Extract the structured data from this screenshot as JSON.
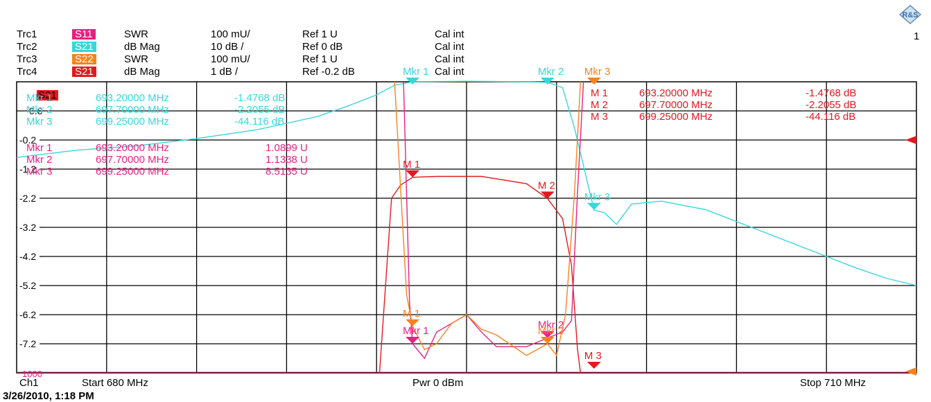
{
  "header": {
    "page_number": "1",
    "logo_icon": "rohde-schwarz-logo-icon",
    "traces": [
      {
        "trc": "Trc1",
        "param": "S11",
        "param_color": "#e8207f",
        "format": "SWR",
        "scale": "100 mU/",
        "ref": "Ref 1 U",
        "cal": "Cal int"
      },
      {
        "trc": "Trc2",
        "param": "S21",
        "param_color": "#39d6dc",
        "format": "dB Mag",
        "scale": "10 dB /",
        "ref": "Ref 0 dB",
        "cal": "Cal int"
      },
      {
        "trc": "Trc3",
        "param": "S22",
        "param_color": "#f58220",
        "format": "SWR",
        "scale": "100 mU/",
        "ref": "Ref 1 U",
        "cal": "Cal int"
      },
      {
        "trc": "Trc4",
        "param": "S21",
        "param_color": "#e3191d",
        "format": "dB Mag",
        "scale": "1 dB /",
        "ref": "Ref -0.2 dB",
        "cal": "Cal int"
      }
    ]
  },
  "marker_tables": {
    "trc2": [
      {
        "label": "Mkr 1",
        "freq": "693.20000 MHz",
        "value": "-1.4768 dB"
      },
      {
        "label": "Mkr 2",
        "freq": "697.70000 MHz",
        "value": "-2.2055 dB"
      },
      {
        "label": "Mkr 3",
        "freq": "699.25000 MHz",
        "value": "-44.116 dB"
      }
    ],
    "trc1": [
      {
        "label": "Mkr 1",
        "freq": "693.20000 MHz",
        "value": "1.0899 U"
      },
      {
        "label": "Mkr 2",
        "freq": "697.70000 MHz",
        "value": "1.1338 U"
      },
      {
        "label": "Mkr 3",
        "freq": "699.25000 MHz",
        "value": "8.5135 U"
      }
    ],
    "trc4": [
      {
        "label": "M 1",
        "freq": "693.20000 MHz",
        "value": "-1.4768 dB"
      },
      {
        "label": "M 2",
        "freq": "697.70000 MHz",
        "value": "-2.2055 dB"
      },
      {
        "label": "M 3",
        "freq": "699.25000 MHz",
        "value": "-44.116 dB"
      }
    ],
    "active_trace_label": "S21"
  },
  "footer": {
    "channel": "Ch1",
    "start": "Start 680 MHz",
    "power": "Pwr 0 dBm",
    "stop": "Stop 710 MHz",
    "timestamp": "3/26/2010, 1:18 PM"
  },
  "colors": {
    "s11": "#e8207f",
    "s21_db": "#39d6dc",
    "s22": "#f58220",
    "s21_fine": "#e3191d",
    "grid": "#000000"
  },
  "chart_data": {
    "type": "line",
    "x_range_mhz": [
      680,
      710
    ],
    "y_axis_ticks": [
      "-0.2",
      "-1.2",
      "-2.2",
      "-3.2",
      "-4.2",
      "-5.2",
      "-6.2",
      "-7.2"
    ],
    "y_axis_extra_labels": [
      "0.8",
      "1000"
    ],
    "ref_value": "-0.2",
    "y_range_trc4": [
      -8.2,
      1.8
    ],
    "grid": true,
    "series": [
      {
        "name": "Trc2 S21 dB Mag",
        "color": "#39d6dc",
        "x": [
          680,
          682,
          684,
          686,
          688,
          690,
          691,
          692,
          692.6,
          693.2,
          695,
          697,
          697.7,
          698.2,
          698.6,
          699.25,
          699.6,
          700,
          700.5,
          701.5,
          703,
          705,
          707,
          708,
          709,
          710
        ],
        "y": [
          -0.8,
          -0.55,
          -0.4,
          -0.15,
          0.15,
          0.6,
          0.95,
          1.35,
          1.68,
          1.8,
          1.82,
          1.8,
          1.78,
          1.6,
          0.2,
          -2.6,
          -2.7,
          -3.1,
          -2.4,
          -2.3,
          -2.6,
          -3.4,
          -4.2,
          -4.6,
          -4.95,
          -5.2
        ]
      },
      {
        "name": "Trc4 S21 dB Mag",
        "color": "#e3191d",
        "x": [
          692.1,
          692.5,
          692.8,
          693.2,
          694,
          695.5,
          697,
          697.7,
          698.2,
          698.5,
          698.7,
          698.8
        ],
        "y": [
          -8.2,
          -2.2,
          -1.75,
          -1.48,
          -1.45,
          -1.45,
          -1.7,
          -2.21,
          -2.9,
          -4.5,
          -7.4,
          -8.2
        ]
      },
      {
        "name": "Trc1 S11 SWR",
        "color": "#e8207f",
        "x": [
          692.9,
          693.1,
          693.2,
          693.6,
          694,
          694.5,
          695,
          695.5,
          696,
          697,
          697.7,
          698.2,
          698.5,
          698.7,
          698.9
        ],
        "y": [
          1.8,
          -5.8,
          -7.2,
          -7.7,
          -6.8,
          -6.5,
          -6.2,
          -6.8,
          -7.3,
          -7.3,
          -7.0,
          -6.8,
          -6.4,
          -2.0,
          1.8
        ]
      },
      {
        "name": "Trc3 S22 SWR",
        "color": "#f58220",
        "x": [
          692.6,
          693.0,
          693.2,
          693.6,
          694,
          694.5,
          695,
          695.5,
          696,
          697,
          697.7,
          698.0,
          698.3,
          698.6,
          698.8
        ],
        "y": [
          1.8,
          -5.5,
          -6.6,
          -7.4,
          -7.2,
          -6.5,
          -6.2,
          -6.7,
          -6.9,
          -7.6,
          -7.2,
          -7.6,
          -6.2,
          -2.0,
          1.8
        ]
      }
    ],
    "markers": [
      {
        "label": "Mkr 1",
        "series": "Trc2 S21 dB Mag",
        "x": 693.2,
        "color": "#39d6dc"
      },
      {
        "label": "Mkr 2",
        "series": "Trc2 S21 dB Mag",
        "x": 697.7,
        "color": "#39d6dc"
      },
      {
        "label": "Mkr 3",
        "series": "Trc2 S21 dB Mag",
        "x": 699.25,
        "color": "#39d6dc"
      },
      {
        "label": "M 1",
        "series": "Trc4 S21 dB Mag",
        "x": 693.2,
        "color": "#e3191d"
      },
      {
        "label": "M 2",
        "series": "Trc4 S21 dB Mag",
        "x": 697.7,
        "color": "#e3191d"
      },
      {
        "label": "M 3",
        "series": "Trc4 S21 dB Mag",
        "x": 699.25,
        "color": "#e3191d"
      },
      {
        "label": "Mkr 1",
        "series": "Trc1 S11 SWR",
        "x": 693.2,
        "color": "#e8207f"
      },
      {
        "label": "Mkr 2",
        "series": "Trc1 S11 SWR",
        "x": 697.7,
        "color": "#e8207f"
      },
      {
        "label": "M 1",
        "series": "Trc3 S22 SWR",
        "x": 693.2,
        "color": "#f58220"
      },
      {
        "label": "Mkr 2",
        "series": "Trc3 S22 SWR",
        "x": 697.7,
        "color": "#f58220"
      },
      {
        "label": "Mkr 3",
        "series": "Trc3 S22 SWR",
        "x": 699.25,
        "color": "#f58220"
      }
    ]
  }
}
